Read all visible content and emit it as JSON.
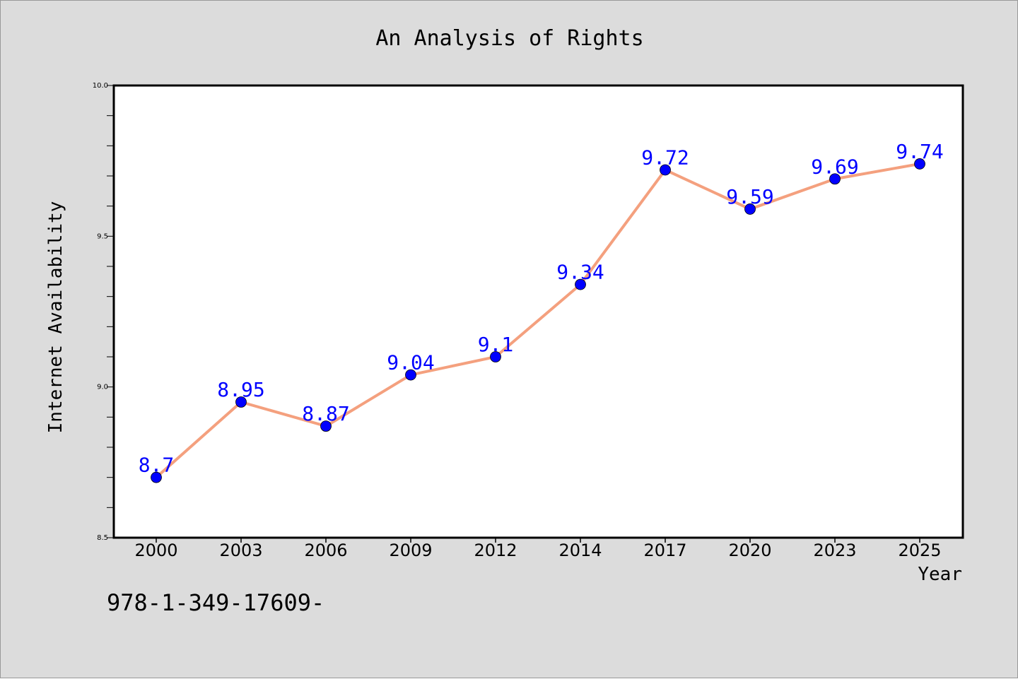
{
  "chart_data": {
    "type": "line",
    "title": "An Analysis of Rights",
    "xlabel": "Year",
    "ylabel": "Internet Availability",
    "categories": [
      "2000",
      "2003",
      "2006",
      "2009",
      "2012",
      "2014",
      "2017",
      "2020",
      "2023",
      "2025"
    ],
    "series": [
      {
        "values": [
          8.7,
          8.95,
          8.87,
          9.04,
          9.1,
          9.34,
          9.72,
          9.59,
          9.69,
          9.74
        ],
        "data_labels": [
          "8.7",
          "8.95",
          "8.87",
          "9.04",
          "9.1",
          "9.34",
          "9.72",
          "9.59",
          "9.69",
          "9.74"
        ],
        "line_color": "#f4a07e",
        "marker_color": "#0000ff"
      }
    ],
    "ylim": [
      8.5,
      10.0
    ],
    "yticks": [
      "8.5",
      "9.0",
      "9.5",
      "10.0"
    ],
    "ytick_values": [
      8.5,
      9.0,
      9.5,
      10.0
    ],
    "yminor_step": 0.1,
    "grid": false,
    "legend": "none",
    "plot_background": "#ffffff",
    "figure_background": "#dcdcdc"
  },
  "footer_text": "978-1-349-17609-"
}
